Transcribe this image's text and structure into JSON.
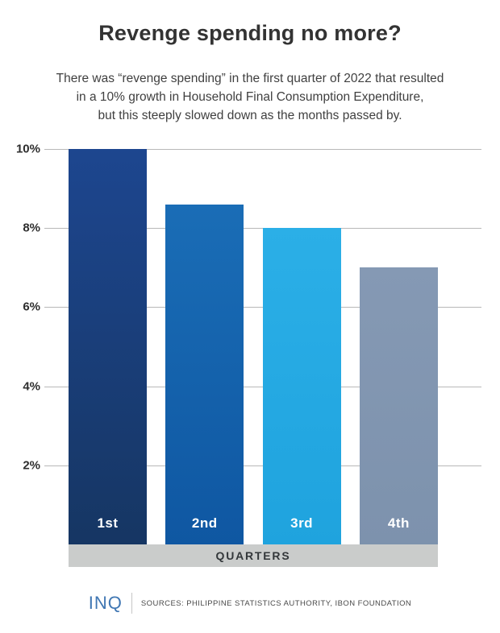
{
  "header": {
    "title": "Revenge spending no more?",
    "subtitle_lines": [
      "There was “revenge spending” in the first quarter of 2022 that resulted",
      "in a 10% growth in Household Final Consumption Expenditure,",
      "but this steeply slowed down as the months passed by."
    ]
  },
  "chart_data": {
    "type": "bar",
    "title": "Revenge spending no more?",
    "categories": [
      "1st",
      "2nd",
      "3rd",
      "4th"
    ],
    "values": [
      10,
      8.6,
      8,
      7
    ],
    "unit": "%",
    "xlabel": "QUARTERS",
    "ylabel": "",
    "ylim": [
      0,
      10
    ],
    "y_ticks": [
      {
        "value": 10,
        "label": "10%"
      },
      {
        "value": 8,
        "label": "8%"
      },
      {
        "value": 6,
        "label": "6%"
      },
      {
        "value": 4,
        "label": "4%"
      },
      {
        "value": 2,
        "label": "2%"
      }
    ],
    "grid": true,
    "legend": "none",
    "bar_colors": [
      {
        "top": "#1d468f",
        "bottom": "#163663"
      },
      {
        "top": "#1a6db6",
        "bottom": "#0f57a2"
      },
      {
        "top": "#2bafe7",
        "bottom": "#1fa3de"
      },
      {
        "top": "#8599b4",
        "bottom": "#7d92ad"
      }
    ],
    "gridline_color": "#b8b8b8"
  },
  "x_axis_band": {
    "label": "QUARTERS",
    "background": "#cacccb"
  },
  "footer": {
    "logo": "INQ",
    "logo_color": "#4077b3",
    "sources": "SOURCES: PHILIPPINE STATISTICS AUTHORITY, IBON FOUNDATION"
  }
}
